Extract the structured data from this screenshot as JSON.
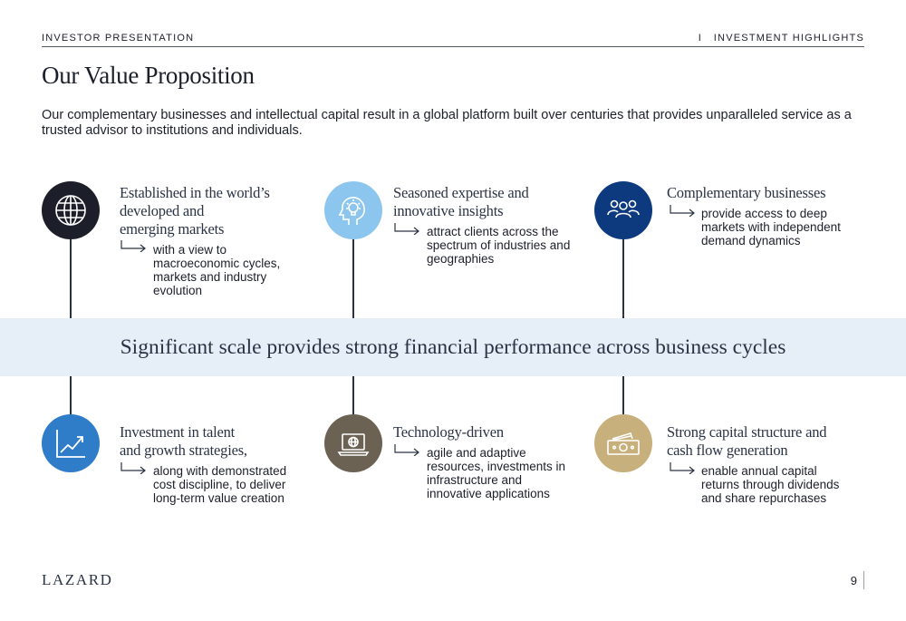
{
  "header": {
    "left": "INVESTOR PRESENTATION",
    "right": "I   INVESTMENT HIGHLIGHTS"
  },
  "title": "Our Value Proposition",
  "intro": "Our complementary businesses and intellectual capital result in a global platform built over centuries that provides unparalleled service as a trusted advisor to institutions and individuals.",
  "band": "Significant scale provides strong financial performance across business cycles",
  "items": [
    {
      "icon": "globe-icon",
      "color": "#1c1f2a",
      "title": [
        "Established in the world’s",
        "developed and",
        "emerging markets"
      ],
      "desc": [
        "with a view to",
        "macroeconomic cycles,",
        "markets and industry",
        "evolution"
      ]
    },
    {
      "icon": "lightbulb-head-icon",
      "color": "#8cc6ef",
      "title": [
        "Seasoned expertise and",
        "innovative insights"
      ],
      "desc": [
        "attract clients across the",
        "spectrum of industries and",
        "geographies"
      ]
    },
    {
      "icon": "people-group-icon",
      "color": "#0d3a7e",
      "title": [
        "Complementary businesses"
      ],
      "desc": [
        "provide access to deep",
        "markets with independent",
        "demand dynamics"
      ]
    },
    {
      "icon": "growth-chart-icon",
      "color": "#2f7cc9",
      "title": [
        "Investment in talent",
        "and growth strategies,"
      ],
      "desc": [
        "along with demonstrated",
        "cost discipline, to deliver",
        "long-term value creation"
      ]
    },
    {
      "icon": "laptop-globe-icon",
      "color": "#6b6253",
      "title": [
        "Technology-driven"
      ],
      "desc": [
        "agile and adaptive",
        "resources, investments in",
        "infrastructure and",
        "innovative applications"
      ]
    },
    {
      "icon": "cash-icon",
      "color": "#c8b07c",
      "title": [
        "Strong capital structure and",
        "cash flow generation"
      ],
      "desc": [
        "enable annual capital",
        "returns through dividends",
        "and share repurchases"
      ]
    }
  ],
  "footer": {
    "logo": "LAZARD",
    "page_number": "9"
  }
}
